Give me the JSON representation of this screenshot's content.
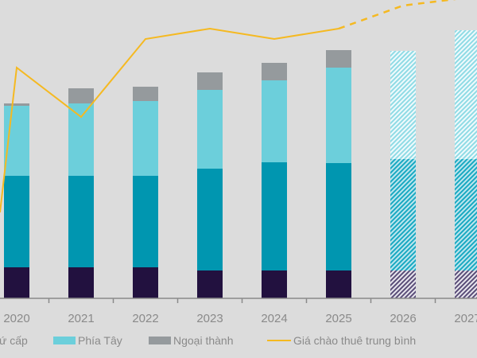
{
  "chart_data": {
    "type": "bar",
    "stacked": true,
    "categories": [
      "2020",
      "2021",
      "2022",
      "2023",
      "2024",
      "2025",
      "2026",
      "2027"
    ],
    "forecast_categories": [
      "2026",
      "2027"
    ],
    "series": [
      {
        "key": "s1",
        "color": "#22113f",
        "values": [
          39,
          39,
          39,
          35,
          35,
          35,
          35,
          35
        ]
      },
      {
        "name": "ứ cấp",
        "color": "#0096b0",
        "values": [
          115,
          115,
          115,
          128,
          136,
          135,
          140,
          140
        ]
      },
      {
        "name": "Phía Tây",
        "color": "#6ccfdb",
        "values": [
          88,
          91,
          94,
          99,
          103,
          120,
          136,
          162
        ]
      },
      {
        "name": "Ngoại thành",
        "color": "#959a9d",
        "values": [
          3,
          19,
          18,
          22,
          22,
          22,
          0,
          0
        ]
      }
    ],
    "line": {
      "name": "Giá chào thuê trung bình",
      "color": "#f5b921",
      "x": [
        "2020",
        "2021",
        "2022",
        "2023",
        "2024",
        "2025",
        "2026",
        "2027"
      ],
      "values": [
        290,
        228,
        326,
        339,
        326,
        339,
        368,
        378
      ],
      "dashed_from": "2025"
    },
    "grid": false,
    "legend_position": "bottom"
  }
}
